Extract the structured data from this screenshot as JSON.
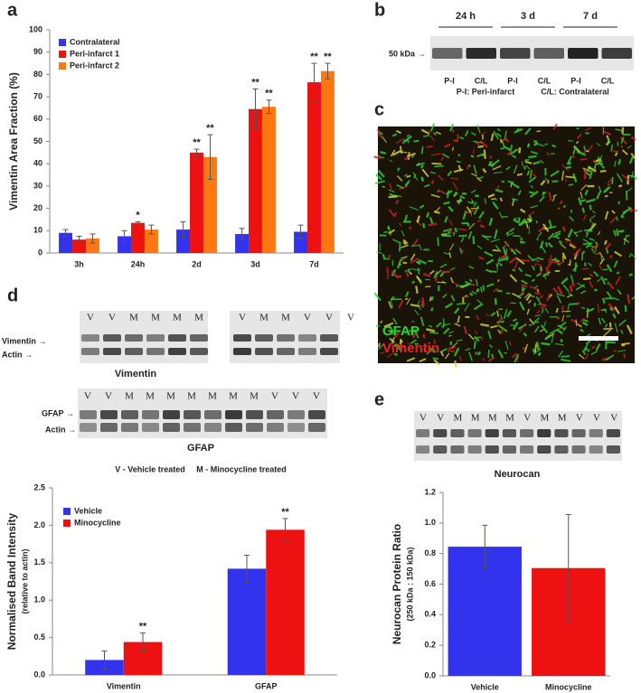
{
  "chart_data": [
    {
      "type": "bar",
      "y_label": "Vimentin Area Fraction (%)",
      "categories": [
        "3h",
        "24h",
        "2d",
        "3d",
        "7d"
      ],
      "series": [
        {
          "name": "Contralateral",
          "color": "#3333ee",
          "values": [
            9,
            7.5,
            10.5,
            8.5,
            9.5
          ],
          "errors": [
            1.5,
            2.5,
            3.5,
            2.5,
            3
          ]
        },
        {
          "name": "Peri-infarct 1",
          "color": "#ee1111",
          "values": [
            6,
            13.5,
            45,
            64.5,
            76.5
          ],
          "errors": [
            1.5,
            0.5,
            1.5,
            9,
            8.5
          ],
          "significance": [
            null,
            "*",
            "**",
            "**",
            "**"
          ]
        },
        {
          "name": "Peri-infarct 2",
          "color": "#ff7711",
          "values": [
            6.5,
            10.5,
            43,
            65.5,
            81.5
          ],
          "errors": [
            2,
            2,
            10,
            3,
            3.5
          ],
          "significance": [
            null,
            null,
            "**",
            "**",
            "**"
          ]
        }
      ],
      "ylim": [
        0,
        100
      ],
      "yticks": [
        0,
        10,
        20,
        30,
        40,
        50,
        60,
        70,
        80,
        90,
        100
      ],
      "grid": false,
      "legend": "upper-left"
    },
    {
      "type": "bar",
      "y_label": "Normalised Band Intensity",
      "y_label_sub": "(relative to actin)",
      "categories": [
        "Vimentin",
        "GFAP"
      ],
      "series": [
        {
          "name": "Vehicle",
          "color": "#3333ee",
          "values": [
            0.2,
            1.42
          ],
          "errors": [
            0.12,
            0.18
          ]
        },
        {
          "name": "Minocycline",
          "color": "#ee1111",
          "values": [
            0.44,
            1.94
          ],
          "errors": [
            0.12,
            0.15
          ],
          "significance": [
            "**",
            "**"
          ]
        }
      ],
      "ylim": [
        0,
        2.5
      ],
      "yticks": [
        {
          "value": 0,
          "label": "0.0"
        },
        0.5,
        {
          "value": 1,
          "label": "1.0"
        },
        1.5,
        {
          "value": 2,
          "label": "2.0"
        },
        2.5
      ],
      "grid": false,
      "legend": "upper-left"
    },
    {
      "type": "bar",
      "y_label": "Neurocan Protein Ratio",
      "y_label_sub": "(250 kDa : 150 kDa)",
      "categories": [
        "Vehicle",
        "Minocycline"
      ],
      "values": [
        0.845,
        0.705
      ],
      "errors": [
        0.14,
        0.35
      ],
      "colors": [
        "#3333ee",
        "#ee1111"
      ],
      "ylim": [
        0,
        1.2
      ],
      "yticks": [
        {
          "value": 0,
          "label": "0.0"
        },
        0.2,
        0.4,
        0.6,
        0.8,
        {
          "value": 1,
          "label": "1.0"
        },
        1.2
      ],
      "grid": false
    }
  ],
  "panel_labels": [
    "a",
    "b",
    "c",
    "d",
    "e"
  ],
  "blot_b": {
    "timepoints": [
      "24 h",
      "3 d",
      "7 d"
    ],
    "marker": "50 kDa →",
    "lanes": [
      "P-I",
      "C/L",
      "P-I",
      "C/L",
      "P-I",
      "C/L"
    ],
    "key": [
      "P-I: Peri-infarct",
      "C/L: Contralateral"
    ]
  },
  "image_c": {
    "labels": [
      "GFAP",
      "Vimentin"
    ]
  },
  "blot_d": {
    "vimentin_lanes": [
      "V",
      "V",
      "M",
      "M",
      "M",
      "M",
      "V",
      "M",
      "M",
      "V",
      "V",
      "V"
    ],
    "vimentin_rows": [
      "Vimentin →",
      "Actin →"
    ],
    "vimentin_title": "Vimentin",
    "gfap_lanes": [
      "V",
      "V",
      "M",
      "M",
      "M",
      "M",
      "M",
      "M",
      "M",
      "V",
      "V",
      "V"
    ],
    "gfap_rows": [
      "GFAP →",
      "Actin →"
    ],
    "gfap_title": "GFAP",
    "key": "V - Vehicle treated     M - Minocycline treated"
  },
  "blot_e": {
    "lanes": [
      "V",
      "V",
      "M",
      "M",
      "M",
      "M",
      "V",
      "M",
      "M",
      "V",
      "V",
      "V"
    ],
    "title": "Neurocan"
  }
}
